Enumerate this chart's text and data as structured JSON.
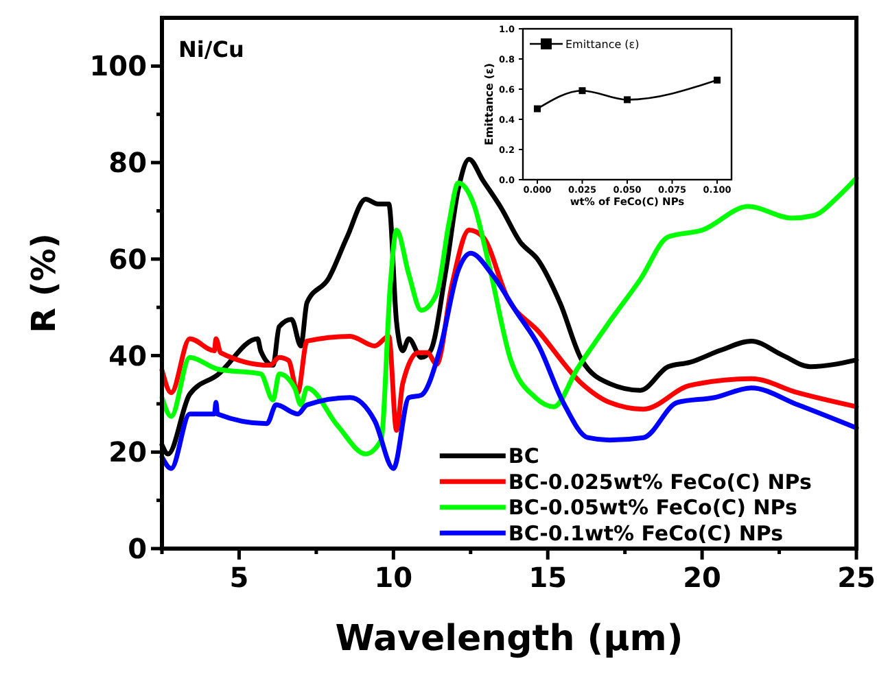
{
  "chart_data": [
    {
      "type": "line",
      "xlabel": "Wavelength (μm)",
      "ylabel": "R (%)",
      "annotations": [
        "Ni/Cu"
      ],
      "xlim": [
        2.5,
        25
      ],
      "ylim": [
        0,
        110
      ],
      "xticks": [
        {
          "value": 2.5,
          "label": null
        },
        5,
        {
          "value": 7.5,
          "label": null
        },
        10,
        {
          "value": 12.5,
          "label": null
        },
        15,
        {
          "value": 17.5,
          "label": null
        },
        20,
        {
          "value": 22.5,
          "label": null
        },
        25
      ],
      "yticks": [
        0,
        {
          "value": 10,
          "label": null
        },
        20,
        {
          "value": 30,
          "label": null
        },
        40,
        {
          "value": 50,
          "label": null
        },
        60,
        {
          "value": 70,
          "label": null
        },
        80,
        {
          "value": 90,
          "label": null
        },
        100
      ],
      "legend": "bottom right",
      "marker": "none",
      "series": [
        {
          "name": "BC",
          "color": "#000000",
          "x": [
            2.5,
            2.7,
            3.4,
            4.3,
            5.6,
            5.7,
            6.1,
            6.3,
            6.7,
            7.0,
            7.2,
            7.9,
            8.5,
            9.1,
            9.5,
            9.85,
            10.1,
            10.3,
            10.5,
            10.9,
            11.2,
            11.7,
            12.1,
            12.45,
            12.9,
            13.5,
            14.1,
            14.7,
            15.4,
            16.1,
            17.0,
            18.0,
            18.9,
            19.6,
            20.6,
            21.6,
            22.6,
            23.5,
            25
          ],
          "values": [
            21.5,
            19.6,
            32,
            36,
            43.5,
            41,
            38,
            46,
            47.5,
            42,
            51,
            56,
            64.6,
            72.4,
            71.4,
            71.4,
            47,
            41,
            43.5,
            39.6,
            41,
            57.7,
            74.4,
            80.7,
            76.3,
            70.5,
            63.6,
            59.7,
            50.9,
            39.1,
            34.2,
            32.8,
            37.7,
            38.6,
            41.1,
            43,
            40.1,
            37.7,
            39.1
          ]
        },
        {
          "name": "BC-0.025wt% FeCo(C) NPs",
          "color": "#ff0000",
          "x": [
            2.5,
            2.8,
            3.4,
            4.2,
            4.25,
            4.4,
            6.0,
            6.3,
            6.6,
            6.9,
            7.2,
            8.6,
            9.4,
            9.85,
            10.1,
            10.3,
            10.8,
            11.1,
            11.4,
            11.9,
            12.45,
            12.9,
            13.7,
            14.7,
            16.1,
            17.0,
            18.1,
            19.6,
            21.6,
            23.1,
            25
          ],
          "values": [
            37,
            32.3,
            43.5,
            41,
            43.5,
            40.6,
            38,
            39.6,
            39,
            32.3,
            43,
            44,
            42,
            44,
            24.5,
            34.2,
            40.6,
            40.6,
            38.2,
            54.8,
            66,
            64.6,
            51.9,
            45,
            34.2,
            30.3,
            28.9,
            33.8,
            35.2,
            32.3,
            29.4
          ]
        },
        {
          "name": "BC-0.05wt% FeCo(C) NPs",
          "color": "#00ff00",
          "x": [
            2.5,
            2.8,
            3.4,
            4.3,
            5.7,
            6.1,
            6.3,
            6.8,
            7.0,
            7.2,
            8.2,
            9.1,
            9.6,
            9.9,
            10.1,
            10.5,
            10.9,
            11.4,
            11.8,
            12.1,
            12.6,
            13.1,
            13.8,
            14.6,
            15.2,
            15.95,
            17.0,
            18.0,
            18.9,
            20.0,
            21.5,
            22.9,
            23.6,
            24.4,
            25
          ],
          "values": [
            31.3,
            27.4,
            39.6,
            37.2,
            36.2,
            30.8,
            36.2,
            33.3,
            29.8,
            33.3,
            25.4,
            19.6,
            22.5,
            54.8,
            66,
            56.8,
            49.4,
            52.8,
            67.5,
            75.8,
            71.4,
            58.7,
            39.1,
            31.3,
            29.4,
            37.2,
            47,
            55.8,
            64.6,
            66,
            70.9,
            68.5,
            69,
            72.9,
            76.8
          ]
        },
        {
          "name": "BC-0.1wt% FeCo(C) NPs",
          "color": "#0000ff",
          "x": [
            2.5,
            2.8,
            3.4,
            4.2,
            4.25,
            4.3,
            5.9,
            6.2,
            6.9,
            7.2,
            8.6,
            9.4,
            10.0,
            10.5,
            10.9,
            11.5,
            12.1,
            12.5,
            13.2,
            14.0,
            14.7,
            15.5,
            16.3,
            17.0,
            18.1,
            19.2,
            20.4,
            21.6,
            23.1,
            25
          ],
          "values": [
            19,
            16.6,
            27.9,
            27.9,
            30.3,
            27.9,
            25.9,
            29.8,
            27.9,
            29.8,
            31.3,
            26.4,
            16.6,
            31.3,
            31.8,
            41.1,
            57.7,
            61.2,
            56.8,
            48.9,
            42.1,
            30.3,
            23,
            22.5,
            23,
            30.3,
            31.3,
            33.3,
            29.8,
            25
          ]
        }
      ]
    },
    {
      "type": "line",
      "xlabel": "wt% of FeCo(C) NPs",
      "ylabel": "Emittance (ε)",
      "xlim": [
        -0.008,
        0.108
      ],
      "ylim": [
        0,
        1
      ],
      "xticks": [
        {
          "value": 0,
          "label": "0.000"
        },
        {
          "value": 0.025,
          "label": "0.025"
        },
        {
          "value": 0.05,
          "label": "0.050"
        },
        {
          "value": 0.075,
          "label": "0.075"
        },
        {
          "value": 0.1,
          "label": "0.100"
        }
      ],
      "yticks": [
        {
          "value": 0,
          "label": "0.0"
        },
        {
          "value": 0.2,
          "label": "0.2"
        },
        {
          "value": 0.4,
          "label": "0.4"
        },
        {
          "value": 0.6,
          "label": "0.6"
        },
        {
          "value": 0.8,
          "label": "0.8"
        },
        {
          "value": 1,
          "label": "1.0"
        }
      ],
      "legend": "top left",
      "marker": "square",
      "series": [
        {
          "name": "Emittance (ε)",
          "color": "#000000",
          "x": [
            0,
            0.025,
            0.05,
            0.1
          ],
          "values": [
            0.47,
            0.59,
            0.53,
            0.66
          ]
        }
      ]
    }
  ]
}
